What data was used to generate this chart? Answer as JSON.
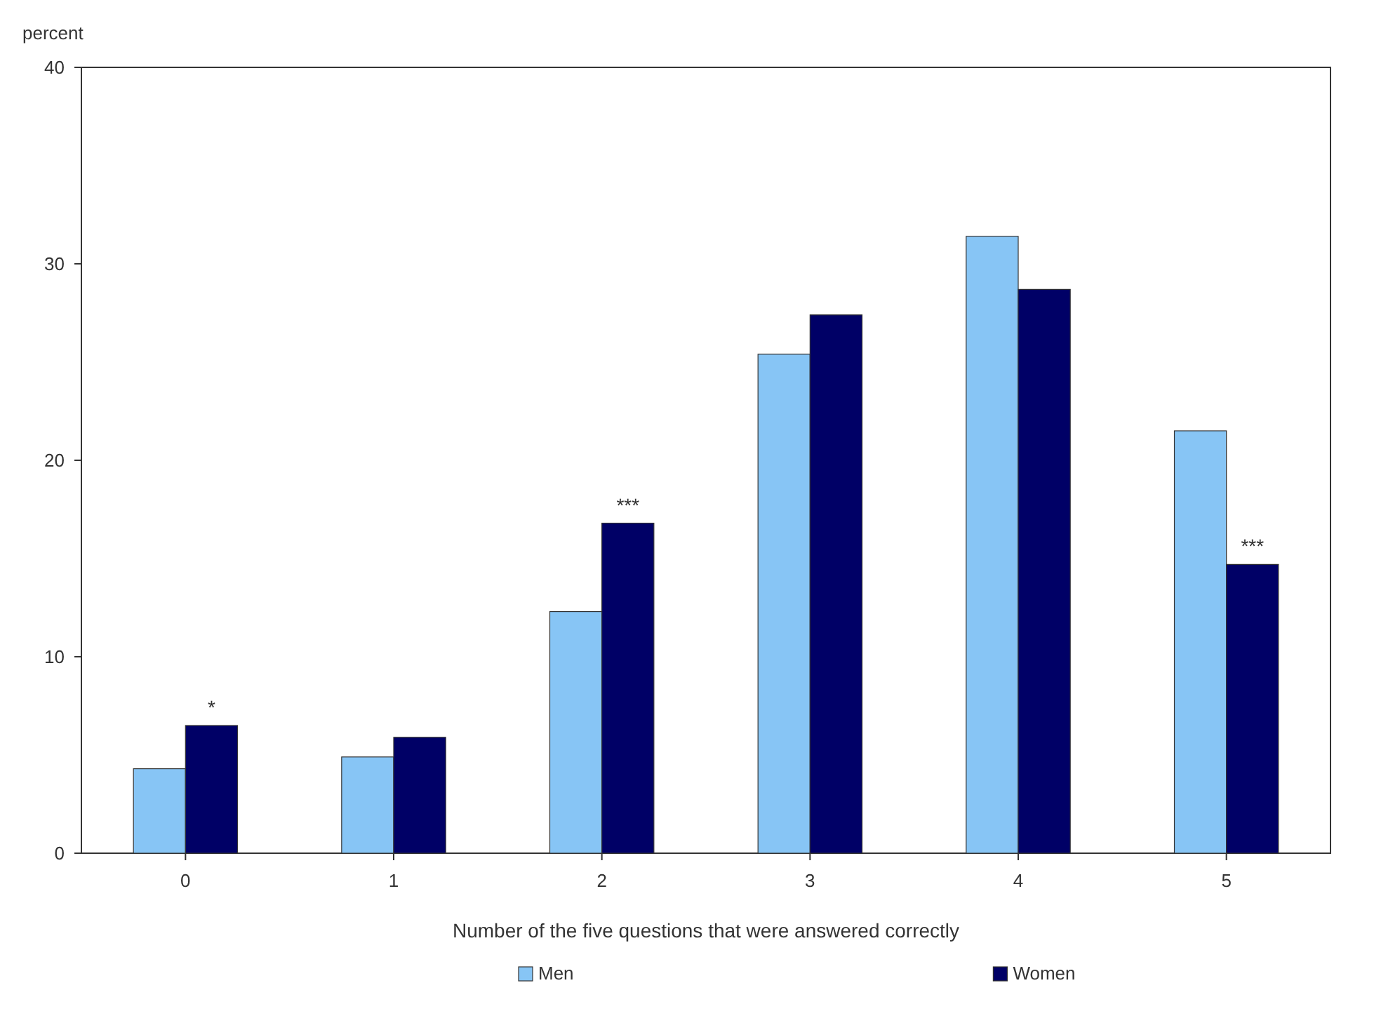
{
  "chart_data": {
    "type": "bar",
    "ylabel": "percent",
    "xlabel": "Number of the five questions that were answered correctly",
    "categories": [
      "0",
      "1",
      "2",
      "3",
      "4",
      "5"
    ],
    "series": [
      {
        "name": "Men",
        "color": "#87c5f5",
        "values": [
          4.3,
          4.9,
          12.3,
          25.4,
          31.4,
          21.5
        ]
      },
      {
        "name": "Women",
        "color": "#000066",
        "values": [
          6.5,
          5.9,
          16.8,
          27.4,
          28.7,
          14.7
        ]
      }
    ],
    "ylim": [
      0,
      40
    ],
    "yticks": [
      0,
      10,
      20,
      30,
      40
    ],
    "grid": false,
    "legend": "bottom",
    "annotations": [
      {
        "text": "*",
        "x": "0",
        "y": 6.5
      },
      {
        "text": "***",
        "x": "2",
        "y": 16.8
      },
      {
        "text": "***",
        "x": "5",
        "y": 14.7
      }
    ]
  }
}
